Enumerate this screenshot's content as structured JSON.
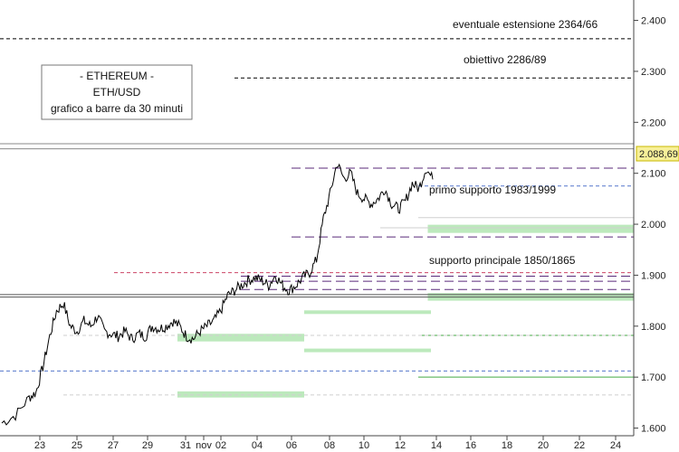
{
  "chart_data": {
    "type": "line",
    "title_box": [
      "- ETHEREUM -",
      "ETH/USD",
      "grafico a barre da 30 minuti"
    ],
    "price_label": "2.088,69",
    "price": 2088.69,
    "ylim": [
      1585,
      2440
    ],
    "y_ticks": [
      {
        "value": 1600,
        "label": "1.600"
      },
      {
        "value": 1700,
        "label": "1.700"
      },
      {
        "value": 1800,
        "label": "1.800"
      },
      {
        "value": 1900,
        "label": "1.900"
      },
      {
        "value": 2000,
        "label": "2.000"
      },
      {
        "value": 2100,
        "label": "2.100"
      },
      {
        "value": 2200,
        "label": "2.200"
      },
      {
        "value": 2300,
        "label": "2.300"
      },
      {
        "value": 2400,
        "label": "2.400"
      }
    ],
    "x_ticks": [
      "23",
      "25",
      "27",
      "29",
      "31",
      "nov",
      "02",
      "04",
      "06",
      "08",
      "10",
      "12",
      "14",
      "16",
      "18",
      "20",
      "22",
      "24"
    ],
    "price_path": [
      [
        0,
        1610
      ],
      [
        2,
        1625
      ],
      [
        4,
        1660
      ],
      [
        5,
        1670
      ],
      [
        6,
        1720
      ],
      [
        7,
        1780
      ],
      [
        8,
        1830
      ],
      [
        9,
        1845
      ],
      [
        10,
        1800
      ],
      [
        11,
        1790
      ],
      [
        12,
        1810
      ],
      [
        13,
        1800
      ],
      [
        14,
        1820
      ],
      [
        15,
        1790
      ],
      [
        16,
        1785
      ],
      [
        17,
        1780
      ],
      [
        18,
        1790
      ],
      [
        19,
        1775
      ],
      [
        20,
        1785
      ],
      [
        21,
        1780
      ],
      [
        22,
        1800
      ],
      [
        23,
        1795
      ],
      [
        24,
        1800
      ],
      [
        25,
        1810
      ],
      [
        26,
        1800
      ],
      [
        27,
        1780
      ],
      [
        28,
        1775
      ],
      [
        29,
        1790
      ],
      [
        30,
        1800
      ],
      [
        31,
        1810
      ],
      [
        32,
        1830
      ],
      [
        33,
        1860
      ],
      [
        34,
        1870
      ],
      [
        35,
        1880
      ],
      [
        36,
        1890
      ],
      [
        37,
        1895
      ],
      [
        38,
        1890
      ],
      [
        39,
        1880
      ],
      [
        40,
        1900
      ],
      [
        41,
        1880
      ],
      [
        42,
        1870
      ],
      [
        43,
        1880
      ],
      [
        44,
        1895
      ],
      [
        45,
        1905
      ],
      [
        46,
        1930
      ],
      [
        47,
        2010
      ],
      [
        48,
        2060
      ],
      [
        49,
        2120
      ],
      [
        50,
        2090
      ],
      [
        51,
        2100
      ],
      [
        52,
        2060
      ],
      [
        53,
        2050
      ],
      [
        54,
        2040
      ],
      [
        55,
        2050
      ],
      [
        56,
        2070
      ],
      [
        57,
        2040
      ],
      [
        58,
        2030
      ],
      [
        59,
        2045
      ],
      [
        60,
        2080
      ],
      [
        61,
        2070
      ],
      [
        62,
        2110
      ],
      [
        63,
        2088
      ]
    ],
    "price_path_note_units": "x = index of 30-min bar groups (visual estimate)",
    "levels": [
      {
        "value": 2364,
        "style": "dash",
        "color": "#000000",
        "x_from": 0,
        "label": "eventuale estensione 2364/66"
      },
      {
        "value": 2287,
        "style": "dash",
        "color": "#000000",
        "x_from": 0.37,
        "label": "obiettivo 2286/89"
      },
      {
        "value": 2158,
        "style": "solid",
        "color": "#888888",
        "x_from": 0
      },
      {
        "value": 2148,
        "style": "solid",
        "color": "#888888",
        "x_from": 0
      },
      {
        "value": 2110,
        "style": "longdash",
        "color": "#5a2a7a",
        "x_from": 0.46
      },
      {
        "value": 2075,
        "style": "dash",
        "color": "#5577cc",
        "x_from": 0.66
      },
      {
        "value": 2013,
        "style": "solid",
        "color": "#cfcfcf",
        "x_from": 0.66
      },
      {
        "value": 1993,
        "style": "solid",
        "color": "#cfcfcf",
        "x_from": 0.6
      },
      {
        "value": 1975,
        "style": "longdash",
        "color": "#5a2a7a",
        "x_from": 0.46
      },
      {
        "value": 1905,
        "style": "dash",
        "color": "#cc4466",
        "x_from": 0.18
      },
      {
        "value": 1898,
        "style": "longdash",
        "color": "#5a2a7a",
        "x_from": 0.38
      },
      {
        "value": 1888,
        "style": "longdash",
        "color": "#5a2a7a",
        "x_from": 0.38
      },
      {
        "value": 1872,
        "style": "longdash",
        "color": "#5a2a7a",
        "x_from": 0.38
      },
      {
        "value": 1862,
        "style": "solid",
        "color": "#555555",
        "x_from": 0
      },
      {
        "value": 1857,
        "style": "solid",
        "color": "#555555",
        "x_from": 0
      },
      {
        "value": 1712,
        "style": "dash",
        "color": "#5577cc",
        "x_from": 0
      },
      {
        "value": 1782,
        "style": "solid",
        "color": "#44aa44",
        "x_from": 0.66
      },
      {
        "value": 1700,
        "style": "solid",
        "color": "#44aa44",
        "x_from": 0.66
      },
      {
        "value": 1782,
        "style": "dash",
        "color": "#cfcfcf",
        "x_from": 0.1
      },
      {
        "value": 1665,
        "style": "dash",
        "color": "#cfcfcf",
        "x_from": 0.1
      }
    ],
    "zones": [
      {
        "from": 1983,
        "to": 1999,
        "x_from": 0.675,
        "label": "primo supporto 1983/1999"
      },
      {
        "from": 1850,
        "to": 1865,
        "x_from": 0.675,
        "label": "supporto principale 1850/1865"
      },
      {
        "from": 1825,
        "to": 1831,
        "x_from": 0.48,
        "x_to": 0.68
      },
      {
        "from": 1770,
        "to": 1785,
        "x_from": 0.28,
        "x_to": 0.48
      },
      {
        "from": 1750,
        "to": 1756,
        "x_from": 0.48,
        "x_to": 0.68
      },
      {
        "from": 1660,
        "to": 1672,
        "x_from": 0.28,
        "x_to": 0.48
      }
    ]
  }
}
